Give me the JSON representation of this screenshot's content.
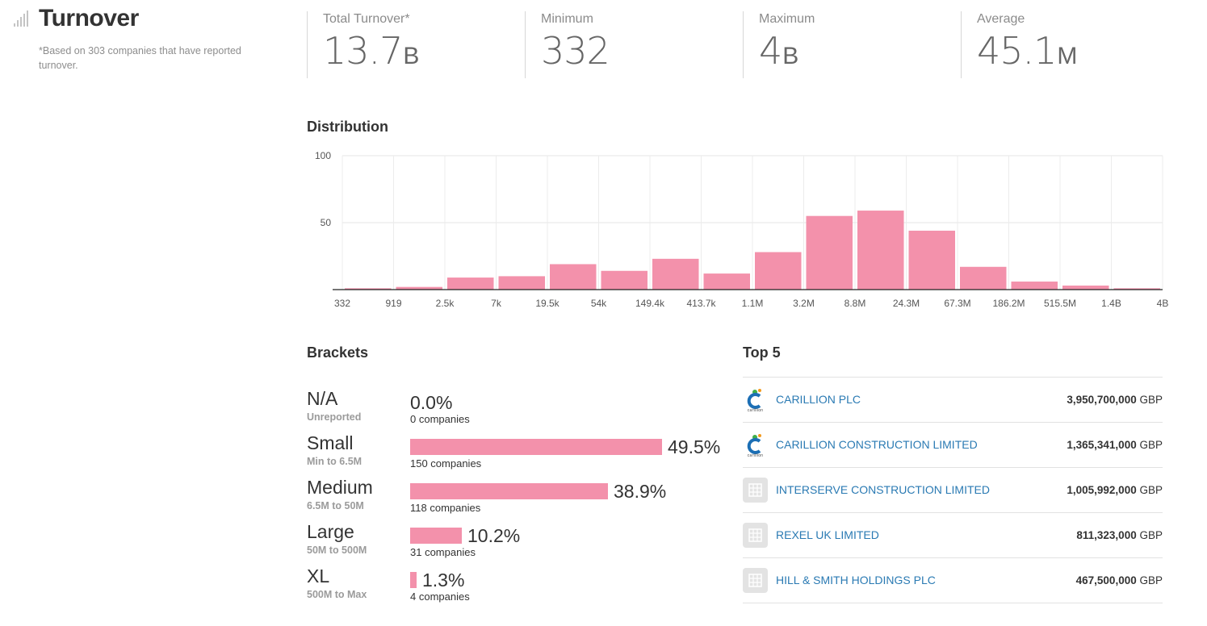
{
  "header": {
    "title": "Turnover",
    "note": "*Based on 303 companies that have reported turnover."
  },
  "stats": [
    {
      "label": "Total Turnover*",
      "value": "13.7",
      "unit": "B"
    },
    {
      "label": "Minimum",
      "value": "332",
      "unit": ""
    },
    {
      "label": "Maximum",
      "value": "4",
      "unit": "B"
    },
    {
      "label": "Average",
      "value": "45.1",
      "unit": "M"
    }
  ],
  "distribution": {
    "title": "Distribution"
  },
  "chart_data": {
    "type": "bar",
    "title": "Distribution",
    "xlabel": "",
    "ylabel": "",
    "ylim": [
      0,
      100
    ],
    "yticks": [
      50,
      100
    ],
    "grid": true,
    "x_tick_labels": [
      "332",
      "919",
      "2.5k",
      "7k",
      "19.5k",
      "54k",
      "149.4k",
      "413.7k",
      "1.1M",
      "3.2M",
      "8.8M",
      "24.3M",
      "67.3M",
      "186.2M",
      "515.5M",
      "1.4B",
      "4B"
    ],
    "values": [
      1,
      2,
      9,
      10,
      19,
      14,
      23,
      12,
      28,
      55,
      59,
      44,
      17,
      6,
      3,
      1
    ],
    "bar_color": "#f391ab"
  },
  "brackets": {
    "title": "Brackets",
    "rows": [
      {
        "name": "N/A",
        "range": "Unreported",
        "percent": "0.0%",
        "fraction": 0.0,
        "count": "0 companies"
      },
      {
        "name": "Small",
        "range": "Min to 6.5M",
        "percent": "49.5%",
        "fraction": 0.495,
        "count": "150 companies"
      },
      {
        "name": "Medium",
        "range": "6.5M to 50M",
        "percent": "38.9%",
        "fraction": 0.389,
        "count": "118 companies"
      },
      {
        "name": "Large",
        "range": "50M to 500M",
        "percent": "10.2%",
        "fraction": 0.102,
        "count": "31 companies"
      },
      {
        "name": "XL",
        "range": "500M to Max",
        "percent": "1.3%",
        "fraction": 0.013,
        "count": "4 companies"
      }
    ]
  },
  "top5": {
    "title": "Top 5",
    "companies": [
      {
        "name": "CARILLION PLC",
        "amount": "3,950,700,000",
        "currency": "GBP",
        "logo": "carillion-logo",
        "logo_text": "carillion"
      },
      {
        "name": "CARILLION CONSTRUCTION LIMITED",
        "amount": "1,365,341,000",
        "currency": "GBP",
        "logo": "carillion-logo",
        "logo_text": "carillion"
      },
      {
        "name": "INTERSERVE CONSTRUCTION LIMITED",
        "amount": "1,005,992,000",
        "currency": "GBP",
        "logo": "building-icon"
      },
      {
        "name": "REXEL UK LIMITED",
        "amount": "811,323,000",
        "currency": "GBP",
        "logo": "building-icon"
      },
      {
        "name": "HILL & SMITH HOLDINGS PLC",
        "amount": "467,500,000",
        "currency": "GBP",
        "logo": "building-icon"
      }
    ]
  },
  "colors": {
    "bar": "#f391ab",
    "link": "#2a7ab3",
    "carillion_blue": "#1c6fb5",
    "carillion_green": "#3fae49",
    "carillion_orange": "#f39a1e"
  }
}
